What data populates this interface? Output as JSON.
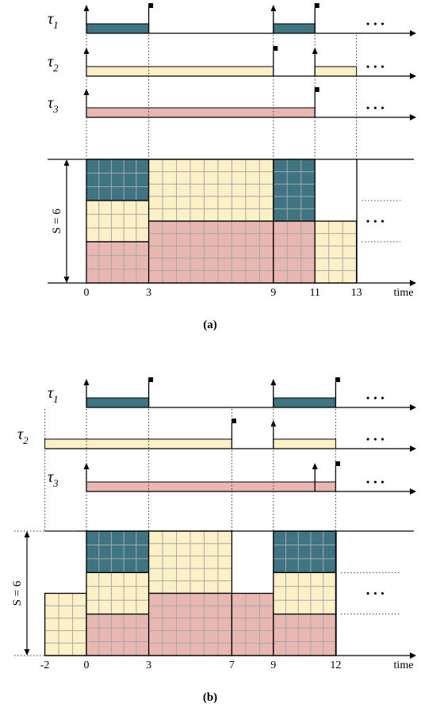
{
  "colors": {
    "teal": "#3f7482",
    "cream": "#fbf0c6",
    "pink": "#e8b7b1",
    "grid": "#a8a8a8",
    "line": "#000000",
    "guide": "#555555"
  },
  "panels": [
    {
      "caption": "(a)",
      "tasks": [
        {
          "label": "τ",
          "sub": "1",
          "color": "teal",
          "bars": [
            [
              0,
              3
            ],
            [
              9,
              11
            ]
          ],
          "arrivals": [
            0,
            9
          ],
          "deadlines": [
            3,
            11
          ],
          "show_arrival_tick": true
        },
        {
          "label": "τ",
          "sub": "2",
          "color": "cream",
          "bars": [
            [
              0,
              9
            ],
            [
              11,
              13
            ]
          ],
          "arrivals": [
            0,
            11
          ],
          "deadlines": [
            9
          ],
          "show_arrival_tick": true
        },
        {
          "label": "τ",
          "sub": "3",
          "color": "pink",
          "bars": [
            [
              0,
              11
            ]
          ],
          "arrivals": [
            0
          ],
          "deadlines": [
            11
          ],
          "show_arrival_tick": true
        }
      ],
      "ellipsis": "• • •",
      "resource_label": "S = 6",
      "resource_size": 6,
      "schedule": [
        {
          "t0": 0,
          "t1": 3,
          "r0": 4,
          "r1": 6,
          "color": "teal"
        },
        {
          "t0": 0,
          "t1": 3,
          "r0": 2,
          "r1": 4,
          "color": "cream"
        },
        {
          "t0": 0,
          "t1": 3,
          "r0": 0,
          "r1": 2,
          "color": "pink"
        },
        {
          "t0": 3,
          "t1": 9,
          "r0": 3,
          "r1": 6,
          "color": "cream"
        },
        {
          "t0": 3,
          "t1": 9,
          "r0": 0,
          "r1": 3,
          "color": "pink"
        },
        {
          "t0": 9,
          "t1": 11,
          "r0": 3,
          "r1": 6,
          "color": "teal"
        },
        {
          "t0": 9,
          "t1": 11,
          "r0": 0,
          "r1": 3,
          "color": "pink"
        },
        {
          "t0": 11,
          "t1": 13,
          "r0": 0,
          "r1": 3,
          "color": "cream"
        }
      ],
      "axis_ticks": [
        "0",
        "3",
        "9",
        "11",
        "13"
      ],
      "axis_tick_values": [
        0,
        3,
        9,
        11,
        13
      ],
      "axis_label": "time"
    },
    {
      "caption": "(b)",
      "tasks": [
        {
          "label": "τ",
          "sub": "1",
          "color": "teal",
          "bars": [
            [
              0,
              3
            ],
            [
              9,
              12
            ]
          ],
          "arrivals": [
            0,
            9
          ],
          "deadlines": [
            3,
            12
          ],
          "show_arrival_tick": true
        },
        {
          "label": "τ",
          "sub": "2",
          "color": "cream",
          "bars": [
            [
              -2,
              7
            ],
            [
              9,
              12
            ]
          ],
          "arrivals": [
            9
          ],
          "deadlines": [
            7
          ],
          "show_arrival_tick": true
        },
        {
          "label": "τ",
          "sub": "3",
          "color": "pink",
          "bars": [
            [
              0,
              12
            ]
          ],
          "arrivals": [
            0,
            11
          ],
          "deadlines": [
            12
          ],
          "show_arrival_tick": true
        }
      ],
      "ellipsis": "• • •",
      "resource_label": "S = 6",
      "resource_size": 6,
      "schedule": [
        {
          "t0": -2,
          "t1": 0,
          "r0": 0,
          "r1": 3,
          "color": "cream"
        },
        {
          "t0": 0,
          "t1": 3,
          "r0": 4,
          "r1": 6,
          "color": "teal"
        },
        {
          "t0": 0,
          "t1": 3,
          "r0": 2,
          "r1": 4,
          "color": "cream"
        },
        {
          "t0": 0,
          "t1": 3,
          "r0": 0,
          "r1": 2,
          "color": "pink"
        },
        {
          "t0": 3,
          "t1": 7,
          "r0": 3,
          "r1": 6,
          "color": "cream"
        },
        {
          "t0": 3,
          "t1": 7,
          "r0": 0,
          "r1": 3,
          "color": "pink"
        },
        {
          "t0": 7,
          "t1": 9,
          "r0": 0,
          "r1": 3,
          "color": "pink"
        },
        {
          "t0": 9,
          "t1": 12,
          "r0": 4,
          "r1": 6,
          "color": "teal"
        },
        {
          "t0": 9,
          "t1": 12,
          "r0": 2,
          "r1": 4,
          "color": "cream"
        },
        {
          "t0": 9,
          "t1": 12,
          "r0": 0,
          "r1": 2,
          "color": "pink"
        }
      ],
      "axis_ticks": [
        "-2",
        "0",
        "3",
        "7",
        "9",
        "12"
      ],
      "axis_tick_values": [
        -2,
        0,
        3,
        7,
        9,
        12
      ],
      "axis_label": "time"
    }
  ]
}
